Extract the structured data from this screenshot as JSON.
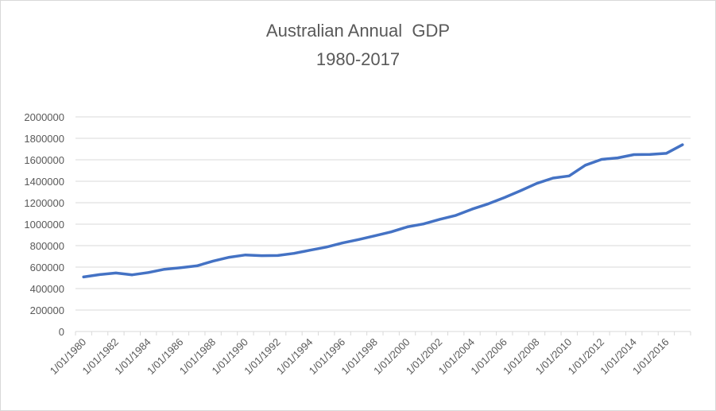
{
  "chart_data": {
    "type": "line",
    "title_line1": "Australian Annual  GDP",
    "title_line2": "1980-2017",
    "xlabel": "",
    "ylabel": "",
    "ylim": [
      0,
      2000000
    ],
    "y_ticks": [
      "0",
      "200000",
      "400000",
      "600000",
      "800000",
      "1000000",
      "1200000",
      "1400000",
      "1600000",
      "1800000",
      "2000000"
    ],
    "x_tick_labels": [
      "1/01/1980",
      "1/01/1982",
      "1/01/1984",
      "1/01/1986",
      "1/01/1988",
      "1/01/1990",
      "1/01/1992",
      "1/01/1994",
      "1/01/1996",
      "1/01/1998",
      "1/01/2000",
      "1/01/2002",
      "1/01/2004",
      "1/01/2006",
      "1/01/2008",
      "1/01/2010",
      "1/01/2012",
      "1/01/2014",
      "1/01/2016"
    ],
    "grid": "horizontal",
    "legend": "none",
    "line_color": "#4472c4",
    "series": [
      {
        "x": [
          "1/01/1980",
          "1/01/1981",
          "1/01/1982",
          "1/01/1983",
          "1/01/1984",
          "1/01/1985",
          "1/01/1986",
          "1/01/1987",
          "1/01/1988",
          "1/01/1989",
          "1/01/1990",
          "1/01/1991",
          "1/01/1992",
          "1/01/1993",
          "1/01/1994",
          "1/01/1995",
          "1/01/1996",
          "1/01/1997",
          "1/01/1998",
          "1/01/1999",
          "1/01/2000",
          "1/01/2001",
          "1/01/2002",
          "1/01/2003",
          "1/01/2004",
          "1/01/2005",
          "1/01/2006",
          "1/01/2007",
          "1/01/2008",
          "1/01/2009",
          "1/01/2010",
          "1/01/2011",
          "1/01/2012",
          "1/01/2013",
          "1/01/2014",
          "1/01/2015",
          "1/01/2016",
          "1/01/2017"
        ],
        "values": [
          508000,
          530000,
          545000,
          528000,
          550000,
          580000,
          595000,
          612000,
          656000,
          692000,
          713000,
          707000,
          708000,
          728000,
          758000,
          787000,
          825000,
          857000,
          892000,
          928000,
          975000,
          1002000,
          1045000,
          1082000,
          1140000,
          1190000,
          1248000,
          1312000,
          1380000,
          1430000,
          1450000,
          1550000,
          1604000,
          1618000,
          1648000,
          1650000,
          1660000,
          1740000
        ]
      }
    ]
  }
}
